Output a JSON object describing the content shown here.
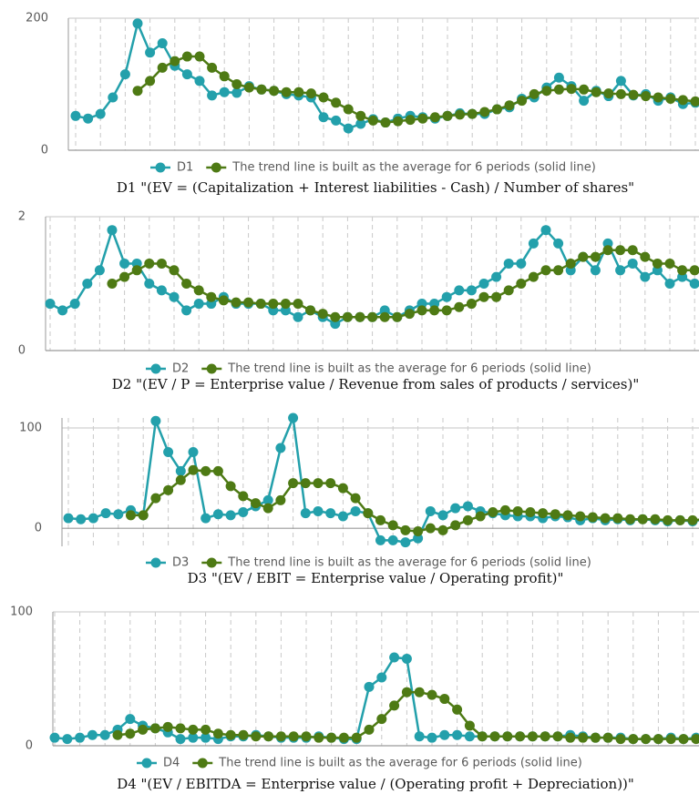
{
  "chart_data": [
    {
      "type": "line",
      "caption": "D1 \"(EV = (Capitalization + Interest liabilities - Cash) / Number of shares\"",
      "ylim": [
        0,
        200
      ],
      "yticks": [
        0,
        200
      ],
      "grid": true,
      "series": [
        {
          "name": "D1",
          "color": "#23a0ab",
          "values": [
            52,
            48,
            55,
            80,
            115,
            192,
            148,
            162,
            128,
            115,
            105,
            83,
            88,
            87,
            97,
            92,
            90,
            85,
            83,
            80,
            50,
            45,
            33,
            40,
            47,
            42,
            48,
            52,
            50,
            48,
            52,
            56,
            55,
            55,
            62,
            65,
            78,
            80,
            95,
            110,
            97,
            75,
            90,
            82,
            105,
            83,
            85,
            75,
            80,
            70,
            72
          ]
        },
        {
          "name": "The trend line is built as the average for 6 periods (solid line)",
          "color": "#4e7a14",
          "values": [
            null,
            null,
            null,
            null,
            null,
            90,
            105,
            125,
            135,
            142,
            142,
            125,
            112,
            100,
            95,
            92,
            90,
            88,
            88,
            86,
            80,
            72,
            62,
            52,
            45,
            42,
            44,
            46,
            48,
            50,
            52,
            54,
            55,
            58,
            62,
            68,
            75,
            85,
            90,
            92,
            93,
            92,
            88,
            86,
            85,
            84,
            82,
            80,
            78,
            76,
            74
          ]
        }
      ]
    },
    {
      "type": "line",
      "caption": "D2 \"(EV / P = Enterprise value / Revenue from sales of products / services)\"",
      "ylim": [
        0,
        2
      ],
      "yticks": [
        0,
        2
      ],
      "grid": true,
      "series": [
        {
          "name": "D2",
          "color": "#23a0ab",
          "values": [
            0.7,
            0.6,
            0.7,
            1.0,
            1.2,
            1.8,
            1.3,
            1.3,
            1.0,
            0.9,
            0.8,
            0.6,
            0.7,
            0.7,
            0.8,
            0.7,
            0.7,
            0.7,
            0.6,
            0.6,
            0.5,
            0.6,
            0.5,
            0.4,
            0.5,
            0.5,
            0.5,
            0.6,
            0.5,
            0.6,
            0.7,
            0.7,
            0.8,
            0.9,
            0.9,
            1.0,
            1.1,
            1.3,
            1.3,
            1.6,
            1.8,
            1.6,
            1.2,
            1.4,
            1.2,
            1.6,
            1.2,
            1.3,
            1.1,
            1.2,
            1.0,
            1.1,
            1.0
          ]
        },
        {
          "name": "The trend line is built as the average for 6 periods (solid line)",
          "color": "#4e7a14",
          "values": [
            null,
            null,
            null,
            null,
            null,
            1.0,
            1.1,
            1.2,
            1.3,
            1.3,
            1.2,
            1.0,
            0.9,
            0.8,
            0.75,
            0.72,
            0.72,
            0.7,
            0.7,
            0.7,
            0.7,
            0.6,
            0.55,
            0.5,
            0.5,
            0.5,
            0.5,
            0.5,
            0.5,
            0.55,
            0.6,
            0.6,
            0.6,
            0.65,
            0.7,
            0.8,
            0.8,
            0.9,
            1.0,
            1.1,
            1.2,
            1.2,
            1.3,
            1.4,
            1.4,
            1.5,
            1.5,
            1.5,
            1.4,
            1.3,
            1.3,
            1.2,
            1.2
          ]
        }
      ]
    },
    {
      "type": "line",
      "caption": "D3 \"(EV / EBIT = Enterprise value / Operating profit)\"",
      "ylim": [
        -18,
        110
      ],
      "yticks": [
        0,
        100
      ],
      "grid": true,
      "series": [
        {
          "name": "D3",
          "color": "#23a0ab",
          "values": [
            10,
            9,
            10,
            15,
            14,
            18,
            13,
            107,
            76,
            57,
            76,
            10,
            14,
            13,
            16,
            22,
            28,
            80,
            110,
            15,
            17,
            15,
            12,
            17,
            15,
            -12,
            -12,
            -14,
            -10,
            17,
            13,
            20,
            22,
            17,
            15,
            13,
            12,
            12,
            10,
            12,
            11,
            8,
            10,
            8,
            9,
            8,
            9,
            8,
            7,
            8,
            7,
            9,
            10
          ]
        },
        {
          "name": "The trend line is built as the average for 6 periods (solid line)",
          "color": "#4e7a14",
          "values": [
            null,
            null,
            null,
            null,
            null,
            13,
            13,
            30,
            38,
            48,
            58,
            57,
            57,
            42,
            32,
            25,
            20,
            28,
            45,
            45,
            45,
            45,
            40,
            30,
            15,
            8,
            3,
            -2,
            -3,
            0,
            -2,
            3,
            8,
            12,
            16,
            18,
            17,
            16,
            15,
            14,
            13,
            12,
            11,
            10,
            10,
            9,
            9,
            9,
            8,
            8,
            8,
            9,
            10
          ]
        }
      ]
    },
    {
      "type": "line",
      "caption": "D4 \"(EV / EBITDA = Enterprise value / (Operating profit + Depreciation))\"",
      "ylim": [
        0,
        100
      ],
      "yticks": [
        0,
        100
      ],
      "grid": true,
      "series": [
        {
          "name": "D4",
          "color": "#23a0ab",
          "values": [
            6,
            5,
            6,
            8,
            8,
            12,
            20,
            15,
            13,
            10,
            5,
            6,
            6,
            5,
            7,
            7,
            8,
            7,
            6,
            6,
            6,
            7,
            6,
            5,
            5,
            44,
            51,
            66,
            65,
            7,
            6,
            8,
            8,
            7,
            7,
            7,
            7,
            7,
            7,
            7,
            7,
            8,
            7,
            6,
            6,
            6,
            5,
            5,
            5,
            6,
            5,
            6
          ]
        },
        {
          "name": "The trend line is built as the average for 6 periods (solid line)",
          "color": "#4e7a14",
          "values": [
            null,
            null,
            null,
            null,
            null,
            8,
            9,
            12,
            13,
            14,
            13,
            12,
            12,
            9,
            8,
            8,
            7,
            7,
            7,
            7,
            7,
            6,
            6,
            6,
            6,
            12,
            20,
            30,
            40,
            40,
            38,
            35,
            27,
            15,
            7,
            7,
            7,
            7,
            7,
            7,
            7,
            6,
            6,
            6,
            6,
            5,
            5,
            5,
            5,
            5,
            5,
            5
          ]
        }
      ]
    }
  ]
}
